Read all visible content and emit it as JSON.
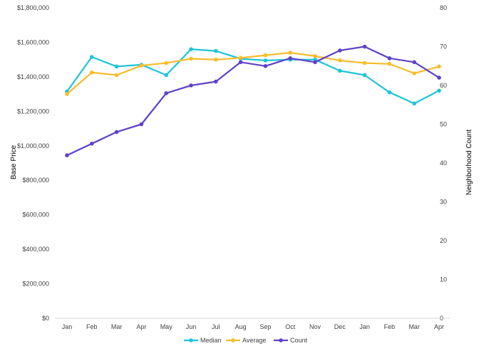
{
  "chart_data": {
    "type": "line",
    "x": [
      "Jan",
      "Feb",
      "Mar",
      "Apr",
      "May",
      "Jun",
      "Jul",
      "Aug",
      "Sep",
      "Oct",
      "Nov",
      "Dec",
      "Jan",
      "Feb",
      "Mar",
      "Apr"
    ],
    "ylabel": "Base Price",
    "y2label": "Neighborhood Count",
    "ylim": [
      0,
      1800000
    ],
    "y2lim": [
      0,
      80
    ],
    "yticks": [
      "$0",
      "$200,000",
      "$400,000",
      "$600,000",
      "$800,000",
      "$1,000,000",
      "$1,200,000",
      "$1,400,000",
      "$1,600,000",
      "$1,800,000"
    ],
    "y2ticks": [
      "0",
      "10",
      "20",
      "30",
      "40",
      "50",
      "60",
      "70",
      "80"
    ],
    "grid": false,
    "legend_position": "bottom",
    "series": [
      {
        "name": "Median",
        "axis": "left",
        "color": "#1fc4d8",
        "values": [
          1315000,
          1515000,
          1460000,
          1470000,
          1410000,
          1560000,
          1550000,
          1505000,
          1495000,
          1500000,
          1500000,
          1435000,
          1410000,
          1310000,
          1245000,
          1320000
        ]
      },
      {
        "name": "Average",
        "axis": "left",
        "color": "#f7bd2c",
        "values": [
          1300000,
          1425000,
          1410000,
          1465000,
          1480000,
          1505000,
          1500000,
          1510000,
          1525000,
          1540000,
          1520000,
          1495000,
          1480000,
          1475000,
          1420000,
          1460000
        ]
      },
      {
        "name": "Count",
        "axis": "right",
        "color": "#6042c8",
        "values": [
          42,
          45,
          48,
          50,
          58,
          60,
          61,
          66,
          65,
          67,
          66,
          69,
          70,
          67,
          66,
          62
        ]
      }
    ]
  }
}
